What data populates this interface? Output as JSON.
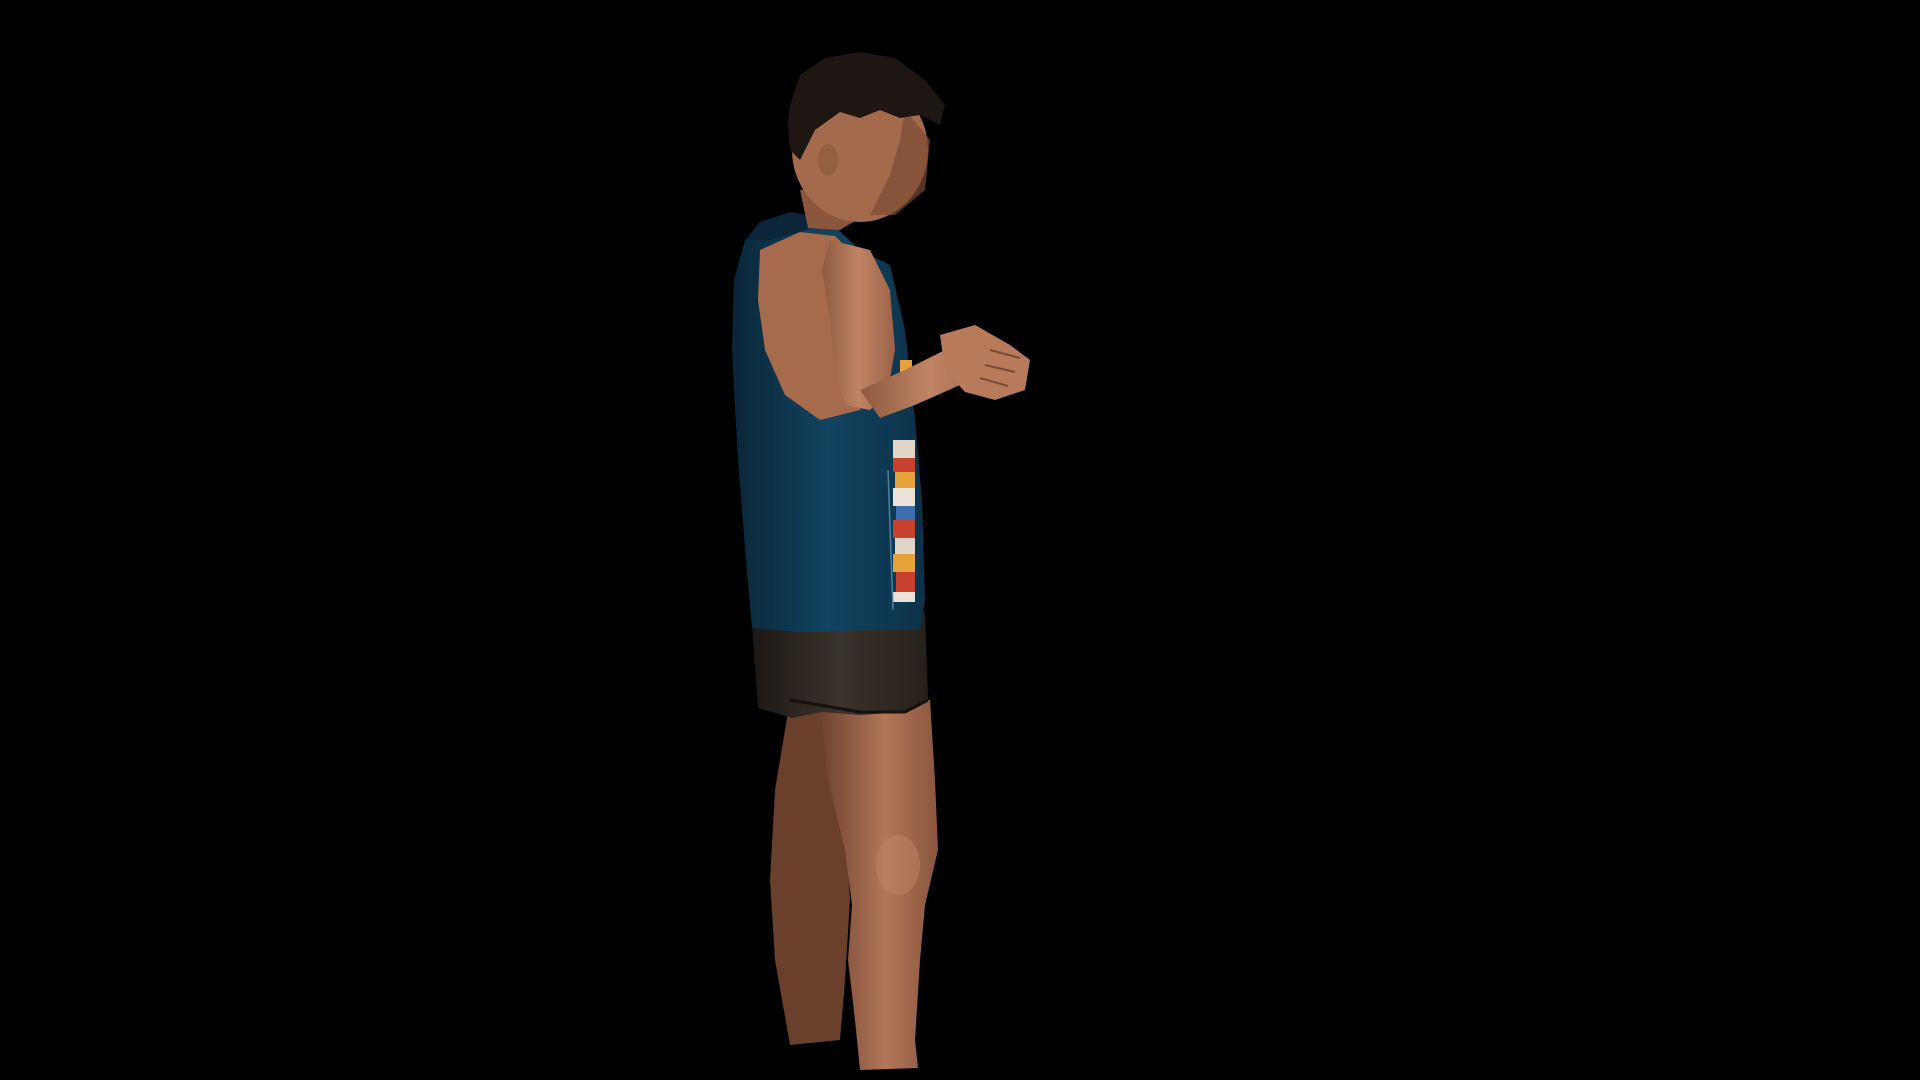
{
  "scene": {
    "background_color": "#000000",
    "subject": {
      "skin_color": "#b5795a",
      "skin_shadow": "#7a4a33",
      "hair_color": "#1e1612",
      "tank_top_color": "#0f3a55",
      "tank_top_shadow": "#0a2638",
      "print_colors": [
        "#e0d6c8",
        "#c8402e",
        "#e3a33a",
        "#3b6fb0",
        "#e9e2d6"
      ],
      "shorts_color": "#2e2722",
      "shorts_shadow": "#1d1814"
    }
  }
}
